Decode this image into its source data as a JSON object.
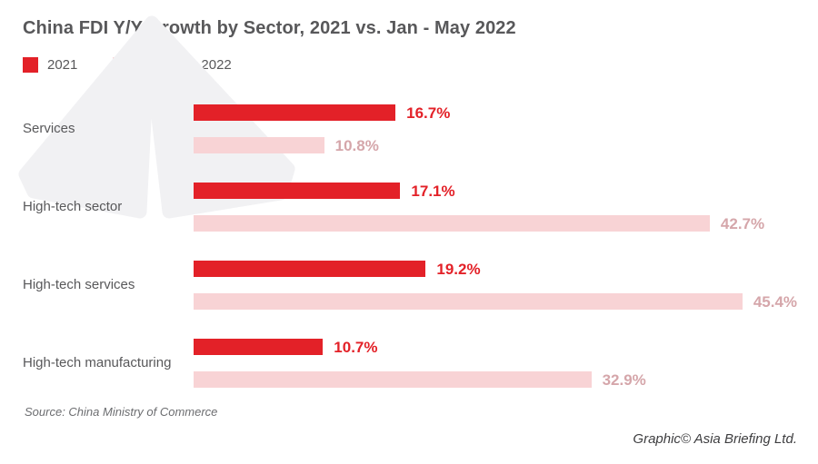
{
  "chart_data": {
    "type": "bar",
    "orientation": "horizontal",
    "title": "China FDI Y/Y Growth by Sector, 2021 vs. Jan - May 2022",
    "categories": [
      "Services",
      "High-tech sector",
      "High-tech services",
      "High-tech manufacturing"
    ],
    "series": [
      {
        "name": "2021",
        "color": "#e32128",
        "label_color": "#e32128",
        "values": [
          16.7,
          17.1,
          19.2,
          10.7
        ]
      },
      {
        "name": "Jan - May 2022",
        "color": "#f8d3d5",
        "label_color": "#d5a6aa",
        "values": [
          10.8,
          42.7,
          45.4,
          32.9
        ]
      }
    ],
    "value_suffix": "%",
    "xlim": [
      0,
      50
    ],
    "grid": false,
    "axis_visible": false,
    "legend_position": "top-left",
    "value_labels": "end-of-bar"
  },
  "footer": {
    "source": "Source: China Ministry of Commerce",
    "credit": "Graphic© Asia Briefing Ltd."
  },
  "palette": {
    "title_text": "#58585a",
    "category_text": "#58585a",
    "watermark": "#f1f1f3",
    "background": "#ffffff"
  }
}
